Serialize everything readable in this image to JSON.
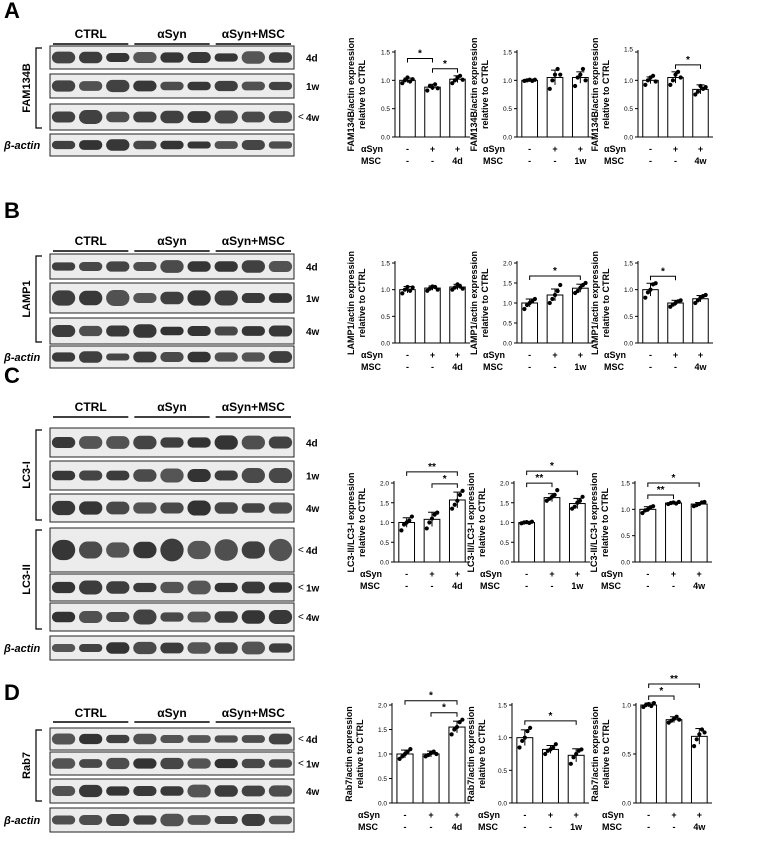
{
  "figure": {
    "panels": [
      {
        "letter": "A",
        "groups": [
          "CTRL",
          "αSyn",
          "αSyn+MSC"
        ],
        "blots": [
          {
            "label": "FAM134B",
            "rows": [
              {
                "tp": "4d",
                "arrow": false
              },
              {
                "tp": "1w",
                "arrow": false
              },
              {
                "tp": "4w",
                "arrow": true
              }
            ]
          },
          {
            "label": "β-actin",
            "rows": [
              {
                "tp": "",
                "arrow": false
              }
            ]
          }
        ]
      },
      {
        "letter": "B",
        "groups": [
          "CTRL",
          "αSyn",
          "αSyn+MSC"
        ],
        "blots": [
          {
            "label": "LAMP1",
            "rows": [
              {
                "tp": "4d",
                "arrow": false
              },
              {
                "tp": "1w",
                "arrow": false
              },
              {
                "tp": "4w",
                "arrow": false
              }
            ]
          },
          {
            "label": "β-actin",
            "rows": [
              {
                "tp": "",
                "arrow": false
              }
            ]
          }
        ]
      },
      {
        "letter": "C",
        "groups": [
          "CTRL",
          "αSyn",
          "αSyn+MSC"
        ],
        "blots": [
          {
            "label": "LC3-I",
            "rows": [
              {
                "tp": "4d",
                "arrow": false
              },
              {
                "tp": "1w",
                "arrow": false
              },
              {
                "tp": "4w",
                "arrow": false
              }
            ]
          },
          {
            "label": "LC3-II",
            "rows": [
              {
                "tp": "4d",
                "arrow": true
              },
              {
                "tp": "1w",
                "arrow": true
              },
              {
                "tp": "4w",
                "arrow": true
              }
            ]
          },
          {
            "label": "β-actin",
            "rows": [
              {
                "tp": "",
                "arrow": false
              }
            ]
          }
        ]
      },
      {
        "letter": "D",
        "groups": [
          "CTRL",
          "αSyn",
          "αSyn+MSC"
        ],
        "blots": [
          {
            "label": "Rab7",
            "rows": [
              {
                "tp": "4d",
                "arrow": true
              },
              {
                "tp": "1w",
                "arrow": true
              },
              {
                "tp": "4w",
                "arrow": false
              }
            ]
          },
          {
            "label": "β-actin",
            "rows": [
              {
                "tp": "",
                "arrow": false
              }
            ]
          }
        ]
      }
    ],
    "row_labels": {
      "aSyn": "αSyn",
      "MSC": "MSC"
    }
  },
  "chart_data": [
    {
      "panel": "A",
      "type": "bar",
      "ylabel": "FAM134B/actin expression relative to CTRL",
      "categories": [
        "CTRL",
        "αSyn",
        "αSyn+MSC 4d"
      ],
      "values": [
        1.0,
        0.88,
        1.02
      ],
      "errors": [
        0.04,
        0.05,
        0.06
      ],
      "points": [
        [
          0.95,
          1.0,
          1.05,
          0.98,
          1.02
        ],
        [
          0.82,
          0.9,
          0.87,
          0.93,
          0.86
        ],
        [
          0.95,
          1.0,
          1.05,
          1.08,
          1.01
        ]
      ],
      "ylim": [
        0,
        1.5
      ],
      "yticks": [
        "0.0",
        "0.5",
        "1.0",
        "1.5"
      ],
      "partial_top_tick": false,
      "aSyn": [
        "-",
        "+",
        "+"
      ],
      "MSC": [
        "-",
        "-",
        "4d"
      ],
      "sig": [
        {
          "from": 0,
          "to": 1,
          "label": "*"
        },
        {
          "from": 1,
          "to": 2,
          "label": "*"
        }
      ]
    },
    {
      "panel": "A",
      "type": "bar",
      "ylabel": "FAM134B/actin expression relative to CTRL",
      "categories": [
        "CTRL",
        "αSyn",
        "αSyn+MSC 1w"
      ],
      "values": [
        1.0,
        1.05,
        1.05
      ],
      "errors": [
        0.02,
        0.13,
        0.1
      ],
      "points": [
        [
          0.99,
          1.0,
          1.01,
          0.99,
          1.01
        ],
        [
          0.85,
          1.0,
          1.1,
          1.2,
          1.1
        ],
        [
          0.9,
          1.05,
          1.1,
          1.2,
          1.0
        ]
      ],
      "ylim": [
        0,
        1.5
      ],
      "yticks": [
        "0.0",
        "0.5",
        "1.0",
        "1.5"
      ],
      "partial_top_tick": false,
      "aSyn": [
        "-",
        "+",
        "+"
      ],
      "MSC": [
        "-",
        "-",
        "1w"
      ],
      "sig": []
    },
    {
      "panel": "A",
      "type": "bar",
      "ylabel": "FAM134B/actin expression relative to CTRL",
      "categories": [
        "CTRL",
        "αSyn",
        "αSyn+MSC 4w"
      ],
      "values": [
        1.0,
        1.05,
        0.84
      ],
      "errors": [
        0.06,
        0.1,
        0.08
      ],
      "points": [
        [
          0.92,
          1.0,
          1.05,
          1.08,
          0.98
        ],
        [
          0.92,
          1.0,
          1.1,
          1.15,
          1.05
        ],
        [
          0.75,
          0.8,
          0.9,
          0.85,
          0.88
        ]
      ],
      "ylim": [
        0,
        1.5
      ],
      "yticks": [
        "0.0",
        "0.5",
        "1.0",
        "1.5"
      ],
      "partial_top_tick": true,
      "aSyn": [
        "-",
        "+",
        "+"
      ],
      "MSC": [
        "-",
        "-",
        "4w"
      ],
      "sig": [
        {
          "from": 1,
          "to": 2,
          "label": "*"
        }
      ]
    },
    {
      "panel": "B",
      "type": "bar",
      "ylabel": "LAMP1/actin expression relative to CTRL",
      "categories": [
        "CTRL",
        "αSyn",
        "αSyn+MSC 4d"
      ],
      "values": [
        1.0,
        1.03,
        1.05
      ],
      "errors": [
        0.06,
        0.04,
        0.05
      ],
      "points": [
        [
          0.93,
          1.0,
          1.05,
          0.98,
          1.04
        ],
        [
          0.98,
          1.02,
          1.06,
          1.05,
          1.0
        ],
        [
          1.0,
          1.04,
          1.1,
          1.06,
          1.02
        ]
      ],
      "ylim": [
        0,
        1.5
      ],
      "yticks": [
        "0.0",
        "0.5",
        "1.0",
        "1.5"
      ],
      "partial_top_tick": false,
      "aSyn": [
        "-",
        "+",
        "+"
      ],
      "MSC": [
        "-",
        "-",
        "4d"
      ],
      "sig": []
    },
    {
      "panel": "B",
      "type": "bar",
      "ylabel": "LAMP1/actin expression relative to CTRL",
      "categories": [
        "CTRL",
        "αSyn",
        "αSyn+MSC 1w"
      ],
      "values": [
        1.0,
        1.2,
        1.37
      ],
      "errors": [
        0.1,
        0.15,
        0.1
      ],
      "points": [
        [
          0.85,
          0.95,
          1.0,
          1.05,
          1.1
        ],
        [
          1.0,
          1.1,
          1.2,
          1.3,
          1.45
        ],
        [
          1.25,
          1.3,
          1.38,
          1.45,
          1.5
        ]
      ],
      "ylim": [
        0,
        2.0
      ],
      "yticks": [
        "0.0",
        "0.5",
        "1.0",
        "1.5",
        "2.0"
      ],
      "partial_top_tick": false,
      "aSyn": [
        "-",
        "+",
        "+"
      ],
      "MSC": [
        "-",
        "-",
        "1w"
      ],
      "sig": [
        {
          "from": 0,
          "to": 2,
          "label": "*"
        }
      ]
    },
    {
      "panel": "B",
      "type": "bar",
      "ylabel": "LAMP1/actin expression relative to CTRL",
      "categories": [
        "CTRL",
        "αSyn",
        "αSyn+MSC 4w"
      ],
      "values": [
        1.0,
        0.75,
        0.83
      ],
      "errors": [
        0.12,
        0.05,
        0.06
      ],
      "points": [
        [
          0.85,
          0.95,
          1.0,
          1.1,
          1.12
        ],
        [
          0.68,
          0.72,
          0.75,
          0.78,
          0.8
        ],
        [
          0.75,
          0.8,
          0.85,
          0.88,
          0.9
        ]
      ],
      "ylim": [
        0,
        1.5
      ],
      "yticks": [
        "0.0",
        "0.5",
        "1.0",
        "1.5"
      ],
      "partial_top_tick": false,
      "aSyn": [
        "-",
        "+",
        "+"
      ],
      "MSC": [
        "-",
        "-",
        "4w"
      ],
      "sig": [
        {
          "from": 0,
          "to": 1,
          "label": "*"
        }
      ]
    },
    {
      "panel": "C",
      "type": "bar",
      "ylabel": "LC3-II/LC3-I expression relative to CTRL",
      "categories": [
        "CTRL",
        "αSyn",
        "αSyn+MSC 4d"
      ],
      "values": [
        1.0,
        1.08,
        1.57
      ],
      "errors": [
        0.12,
        0.18,
        0.2
      ],
      "points": [
        [
          0.8,
          0.95,
          1.0,
          1.05,
          1.15
        ],
        [
          0.85,
          1.0,
          1.1,
          1.2,
          1.25
        ],
        [
          1.35,
          1.45,
          1.55,
          1.7,
          1.8
        ]
      ],
      "ylim": [
        0,
        2.0
      ],
      "yticks": [
        "0.0",
        "0.5",
        "1.0",
        "1.5",
        "2.0"
      ],
      "partial_top_tick": false,
      "aSyn": [
        "-",
        "+",
        "+"
      ],
      "MSC": [
        "-",
        "-",
        "4d"
      ],
      "sig": [
        {
          "from": 0,
          "to": 2,
          "label": "**"
        },
        {
          "from": 1,
          "to": 2,
          "label": "*"
        }
      ]
    },
    {
      "panel": "C",
      "type": "bar",
      "ylabel": "LC3-II/LC3-I expression relative to CTRL",
      "categories": [
        "CTRL",
        "αSyn",
        "αSyn+MSC 1w"
      ],
      "values": [
        1.0,
        1.63,
        1.48
      ],
      "errors": [
        0.02,
        0.1,
        0.13
      ],
      "points": [
        [
          0.98,
          1.0,
          1.01,
          0.99,
          1.02
        ],
        [
          1.55,
          1.6,
          1.65,
          1.7,
          1.82
        ],
        [
          1.35,
          1.4,
          1.5,
          1.55,
          1.65
        ]
      ],
      "ylim": [
        0,
        2.0
      ],
      "yticks": [
        "0.0",
        "0.5",
        "1.0",
        "1.5",
        "2.0"
      ],
      "partial_top_tick": false,
      "aSyn": [
        "-",
        "+",
        "+"
      ],
      "MSC": [
        "-",
        "-",
        "1w"
      ],
      "sig": [
        {
          "from": 0,
          "to": 1,
          "label": "**"
        },
        {
          "from": 0,
          "to": 2,
          "label": "*"
        }
      ]
    },
    {
      "panel": "C",
      "type": "bar",
      "ylabel": "LC3-II/LC3-I expression relative to CTRL",
      "categories": [
        "CTRL",
        "αSyn",
        "αSyn+MSC 4w"
      ],
      "values": [
        1.0,
        1.12,
        1.1
      ],
      "errors": [
        0.05,
        0.02,
        0.03
      ],
      "points": [
        [
          0.93,
          0.98,
          1.0,
          1.04,
          1.06
        ],
        [
          1.1,
          1.12,
          1.13,
          1.11,
          1.14
        ],
        [
          1.06,
          1.08,
          1.1,
          1.13,
          1.14
        ]
      ],
      "ylim": [
        0,
        1.5
      ],
      "yticks": [
        "0.0",
        "0.5",
        "1.0",
        "1.5"
      ],
      "partial_top_tick": false,
      "aSyn": [
        "-",
        "+",
        "+"
      ],
      "MSC": [
        "-",
        "-",
        "4w"
      ],
      "sig": [
        {
          "from": 0,
          "to": 1,
          "label": "**"
        },
        {
          "from": 0,
          "to": 2,
          "label": "*"
        }
      ]
    },
    {
      "panel": "D",
      "type": "bar",
      "ylabel": "Rab7/actin expression relative to CTRL",
      "categories": [
        "CTRL",
        "αSyn",
        "αSyn+MSC 4d"
      ],
      "values": [
        1.0,
        1.0,
        1.55
      ],
      "errors": [
        0.08,
        0.06,
        0.12
      ],
      "points": [
        [
          0.9,
          0.95,
          1.0,
          1.05,
          1.1
        ],
        [
          0.95,
          0.98,
          1.02,
          1.05,
          1.0
        ],
        [
          1.4,
          1.5,
          1.55,
          1.65,
          1.7
        ]
      ],
      "ylim": [
        0,
        2.0
      ],
      "yticks": [
        "0.0",
        "0.5",
        "1.0",
        "1.5",
        "2.0"
      ],
      "partial_top_tick": false,
      "aSyn": [
        "-",
        "+",
        "+"
      ],
      "MSC": [
        "-",
        "-",
        "4d"
      ],
      "sig": [
        {
          "from": 0,
          "to": 2,
          "label": "*"
        },
        {
          "from": 1,
          "to": 2,
          "label": "*"
        }
      ]
    },
    {
      "panel": "D",
      "type": "bar",
      "ylabel": "Rab7/actin expression relative to CTRL",
      "categories": [
        "CTRL",
        "αSyn",
        "αSyn+MSC 1w"
      ],
      "values": [
        1.0,
        0.82,
        0.73
      ],
      "errors": [
        0.12,
        0.06,
        0.1
      ],
      "points": [
        [
          0.85,
          0.95,
          1.0,
          1.1,
          1.15
        ],
        [
          0.75,
          0.8,
          0.82,
          0.85,
          0.9
        ],
        [
          0.6,
          0.7,
          0.75,
          0.8,
          0.82
        ]
      ],
      "ylim": [
        0,
        1.5
      ],
      "yticks": [
        "0.0",
        "0.5",
        "1.0",
        "1.5"
      ],
      "partial_top_tick": false,
      "aSyn": [
        "-",
        "+",
        "+"
      ],
      "MSC": [
        "-",
        "-",
        "1w"
      ],
      "sig": [
        {
          "from": 0,
          "to": 2,
          "label": "*"
        }
      ]
    },
    {
      "panel": "D",
      "type": "bar",
      "ylabel": "Rab7/actin expression relative to CTRL",
      "categories": [
        "CTRL",
        "αSyn",
        "αSyn+MSC 4w"
      ],
      "values": [
        1.0,
        0.85,
        0.68
      ],
      "errors": [
        0.02,
        0.03,
        0.08
      ],
      "points": [
        [
          0.98,
          1.0,
          1.01,
          0.99,
          1.02
        ],
        [
          0.82,
          0.84,
          0.86,
          0.88,
          0.85
        ],
        [
          0.58,
          0.65,
          0.7,
          0.75,
          0.72
        ]
      ],
      "ylim": [
        0,
        1.0
      ],
      "yticks": [
        "0.0",
        "0.5",
        "1.0"
      ],
      "partial_top_tick": false,
      "aSyn": [
        "-",
        "+",
        "+"
      ],
      "MSC": [
        "-",
        "-",
        "4w"
      ],
      "sig": [
        {
          "from": 0,
          "to": 1,
          "label": "*"
        },
        {
          "from": 0,
          "to": 2,
          "label": "**"
        }
      ]
    }
  ]
}
